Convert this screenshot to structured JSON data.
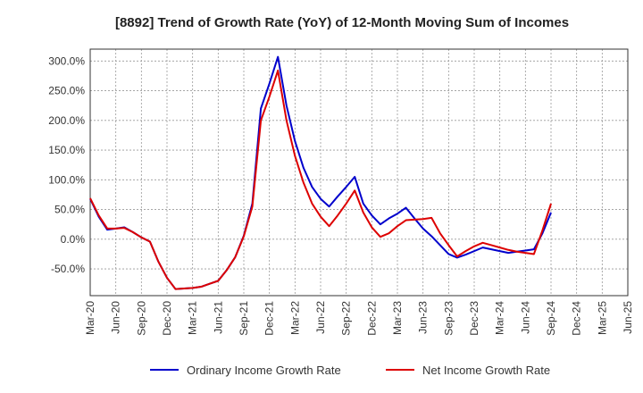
{
  "chart_data": {
    "type": "line",
    "title": "[8892]  Trend of Growth Rate (YoY) of 12-Month Moving Sum of Incomes",
    "xlabel": "",
    "ylabel": "",
    "ylim": [
      -95,
      320
    ],
    "y_ticks": [
      300,
      250,
      200,
      150,
      100,
      50,
      0,
      -50
    ],
    "y_tick_labels": [
      "300.0%",
      "250.0%",
      "200.0%",
      "150.0%",
      "100.0%",
      "50.0%",
      "0.0%",
      "-50.0%"
    ],
    "x_ticks": [
      "Mar-20",
      "Jun-20",
      "Sep-20",
      "Dec-20",
      "Mar-21",
      "Jun-21",
      "Sep-21",
      "Dec-21",
      "Mar-22",
      "Jun-22",
      "Sep-22",
      "Dec-22",
      "Mar-23",
      "Jun-23",
      "Sep-23",
      "Dec-23",
      "Mar-24",
      "Jun-24",
      "Sep-24",
      "Dec-24",
      "Mar-25",
      "Jun-25"
    ],
    "grid": true,
    "legend_position": "bottom",
    "colors": {
      "ordinary": "#0000cc",
      "net": "#dd0000",
      "grid": "#999999",
      "axis": "#333333"
    },
    "series": [
      {
        "name": "Ordinary Income Growth Rate",
        "points": [
          [
            0,
            68
          ],
          [
            1,
            38
          ],
          [
            2,
            16
          ],
          [
            3,
            18
          ],
          [
            4,
            20
          ],
          [
            5,
            12
          ],
          [
            6,
            3
          ],
          [
            7,
            -4
          ],
          [
            8,
            -38
          ],
          [
            9,
            -65
          ],
          [
            10,
            -84
          ],
          [
            11,
            -83
          ],
          [
            12,
            -82
          ],
          [
            13,
            -80
          ],
          [
            14,
            -75
          ],
          [
            15,
            -70
          ],
          [
            16,
            -52
          ],
          [
            17,
            -30
          ],
          [
            18,
            6
          ],
          [
            19,
            60
          ],
          [
            20,
            220
          ],
          [
            21,
            262
          ],
          [
            22,
            307
          ],
          [
            23,
            225
          ],
          [
            24,
            165
          ],
          [
            25,
            120
          ],
          [
            26,
            88
          ],
          [
            27,
            68
          ],
          [
            28,
            55
          ],
          [
            29,
            72
          ],
          [
            30,
            88
          ],
          [
            31,
            105
          ],
          [
            32,
            60
          ],
          [
            33,
            40
          ],
          [
            34,
            25
          ],
          [
            35,
            35
          ],
          [
            36,
            43
          ],
          [
            37,
            53
          ],
          [
            38,
            35
          ],
          [
            39,
            18
          ],
          [
            40,
            5
          ],
          [
            41,
            -10
          ],
          [
            42,
            -25
          ],
          [
            43,
            -31
          ],
          [
            44,
            -26
          ],
          [
            45,
            -20
          ],
          [
            46,
            -14
          ],
          [
            47,
            -17
          ],
          [
            48,
            -20
          ],
          [
            49,
            -23
          ],
          [
            50,
            -21
          ],
          [
            51,
            -19
          ],
          [
            52,
            -17
          ],
          [
            53,
            10
          ],
          [
            54,
            45
          ]
        ]
      },
      {
        "name": "Net Income Growth Rate",
        "points": [
          [
            0,
            69
          ],
          [
            1,
            40
          ],
          [
            2,
            18
          ],
          [
            3,
            18
          ],
          [
            4,
            19
          ],
          [
            5,
            12
          ],
          [
            6,
            3
          ],
          [
            7,
            -4
          ],
          [
            8,
            -38
          ],
          [
            9,
            -65
          ],
          [
            10,
            -84
          ],
          [
            11,
            -83
          ],
          [
            12,
            -82
          ],
          [
            13,
            -80
          ],
          [
            14,
            -75
          ],
          [
            15,
            -70
          ],
          [
            16,
            -52
          ],
          [
            17,
            -30
          ],
          [
            18,
            5
          ],
          [
            19,
            55
          ],
          [
            20,
            200
          ],
          [
            21,
            240
          ],
          [
            22,
            284
          ],
          [
            23,
            200
          ],
          [
            24,
            140
          ],
          [
            25,
            95
          ],
          [
            26,
            60
          ],
          [
            27,
            38
          ],
          [
            28,
            22
          ],
          [
            29,
            40
          ],
          [
            30,
            60
          ],
          [
            31,
            82
          ],
          [
            32,
            45
          ],
          [
            33,
            20
          ],
          [
            34,
            4
          ],
          [
            35,
            10
          ],
          [
            36,
            22
          ],
          [
            37,
            32
          ],
          [
            38,
            33
          ],
          [
            39,
            34
          ],
          [
            40,
            36
          ],
          [
            41,
            10
          ],
          [
            42,
            -10
          ],
          [
            43,
            -29
          ],
          [
            44,
            -20
          ],
          [
            45,
            -12
          ],
          [
            46,
            -6
          ],
          [
            47,
            -10
          ],
          [
            48,
            -14
          ],
          [
            49,
            -18
          ],
          [
            50,
            -21
          ],
          [
            51,
            -23
          ],
          [
            52,
            -25
          ],
          [
            53,
            15
          ],
          [
            54,
            60
          ]
        ]
      }
    ]
  }
}
